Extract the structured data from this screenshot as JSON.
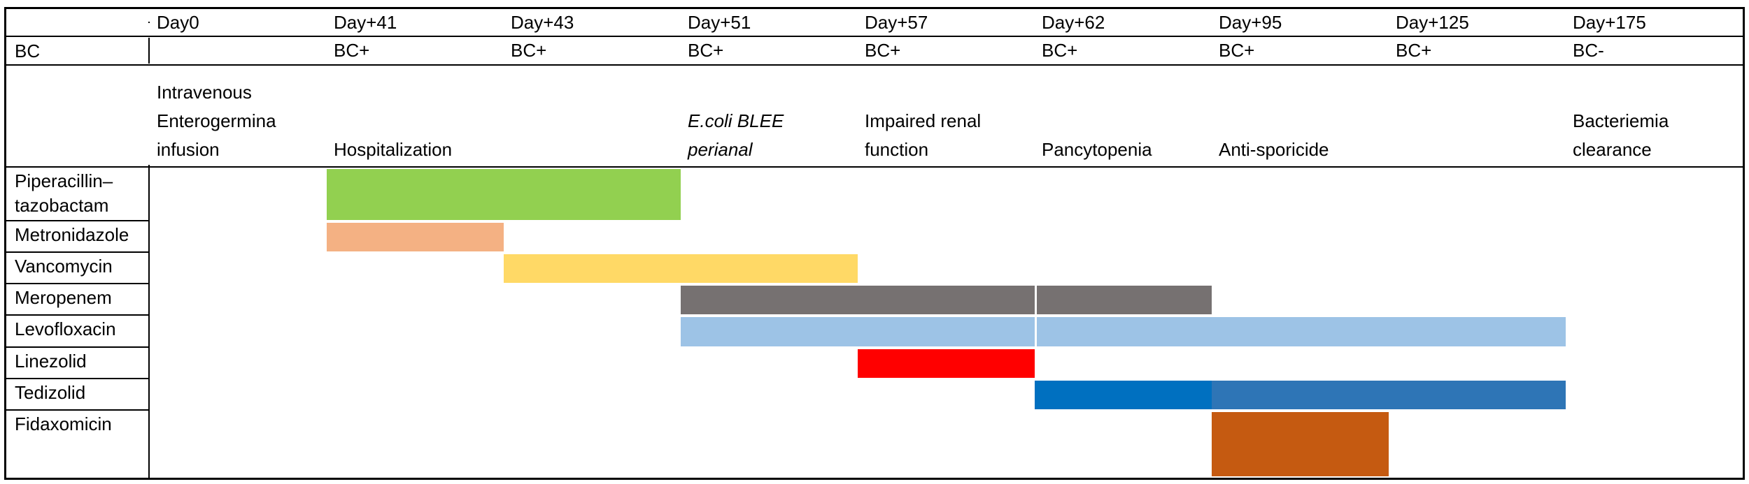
{
  "table": {
    "corner_label": "",
    "bc_row_label": "BC"
  },
  "chart_data": {
    "type": "bar",
    "subtype": "gantt-timeline",
    "grid": "table borders only, no internal vertical gridlines in day columns",
    "day_columns": [
      "Day0",
      "Day+41",
      "Day+43",
      "Day+51",
      "Day+57",
      "Day+62",
      "Day+95",
      "Day+125",
      "Day+175"
    ],
    "bc_status": [
      "",
      "BC+",
      "BC+",
      "BC+",
      "BC+",
      "BC+",
      "BC+",
      "BC+",
      "BC-"
    ],
    "events": [
      {
        "day": "Day0",
        "text": "Intravenous\nEnterogermina\ninfusion",
        "italic": false
      },
      {
        "day": "Day+41",
        "text": "Hospitalization",
        "italic": false
      },
      {
        "day": "Day+43",
        "text": "",
        "italic": false
      },
      {
        "day": "Day+51",
        "text": "E.coli BLEE\nperianal",
        "italic": true
      },
      {
        "day": "Day+57",
        "text": "Impaired renal\nfunction",
        "italic": false
      },
      {
        "day": "Day+62",
        "text": "Pancytopenia",
        "italic": false
      },
      {
        "day": "Day+95",
        "text": "Anti-sporicide",
        "italic": false
      },
      {
        "day": "Day+125",
        "text": "",
        "italic": false
      },
      {
        "day": "Day+175",
        "text": "Bacteriemia\nclearance",
        "italic": false
      }
    ],
    "series": [
      {
        "name": "Piperacillin–\ntazobactam",
        "segments": [
          {
            "start": "Day+41",
            "end": "Day+51",
            "color": "#92D050"
          }
        ]
      },
      {
        "name": "Metronidazole",
        "segments": [
          {
            "start": "Day+41",
            "end": "Day+43",
            "color": "#F4B183"
          }
        ]
      },
      {
        "name": "Vancomycin",
        "segments": [
          {
            "start": "Day+43",
            "end": "Day+57",
            "color": "#FFD966"
          }
        ]
      },
      {
        "name": "Meropenem",
        "segments": [
          {
            "start": "Day+51",
            "end": "Day+62",
            "color": "#767171"
          },
          {
            "start": "Day+62",
            "end": "Day+95",
            "color": "#767171"
          }
        ]
      },
      {
        "name": "Levofloxacin",
        "segments": [
          {
            "start": "Day+51",
            "end": "Day+62",
            "color": "#9DC3E6"
          },
          {
            "start": "Day+62",
            "end": "Day+175",
            "color": "#9DC3E6"
          }
        ]
      },
      {
        "name": "Linezolid",
        "segments": [
          {
            "start": "Day+57",
            "end": "Day+62",
            "color": "#FF0000"
          }
        ]
      },
      {
        "name": "Tedizolid",
        "segments": [
          {
            "start": "Day+62",
            "end": "Day+95",
            "color": "#0070C0"
          },
          {
            "start": "Day+95",
            "end": "Day+175",
            "color": "#2E75B6"
          }
        ]
      },
      {
        "name": "Fidaxomicin",
        "segments": [
          {
            "start": "Day+95",
            "end": "Day+125",
            "color": "#C55A11"
          }
        ]
      }
    ]
  }
}
